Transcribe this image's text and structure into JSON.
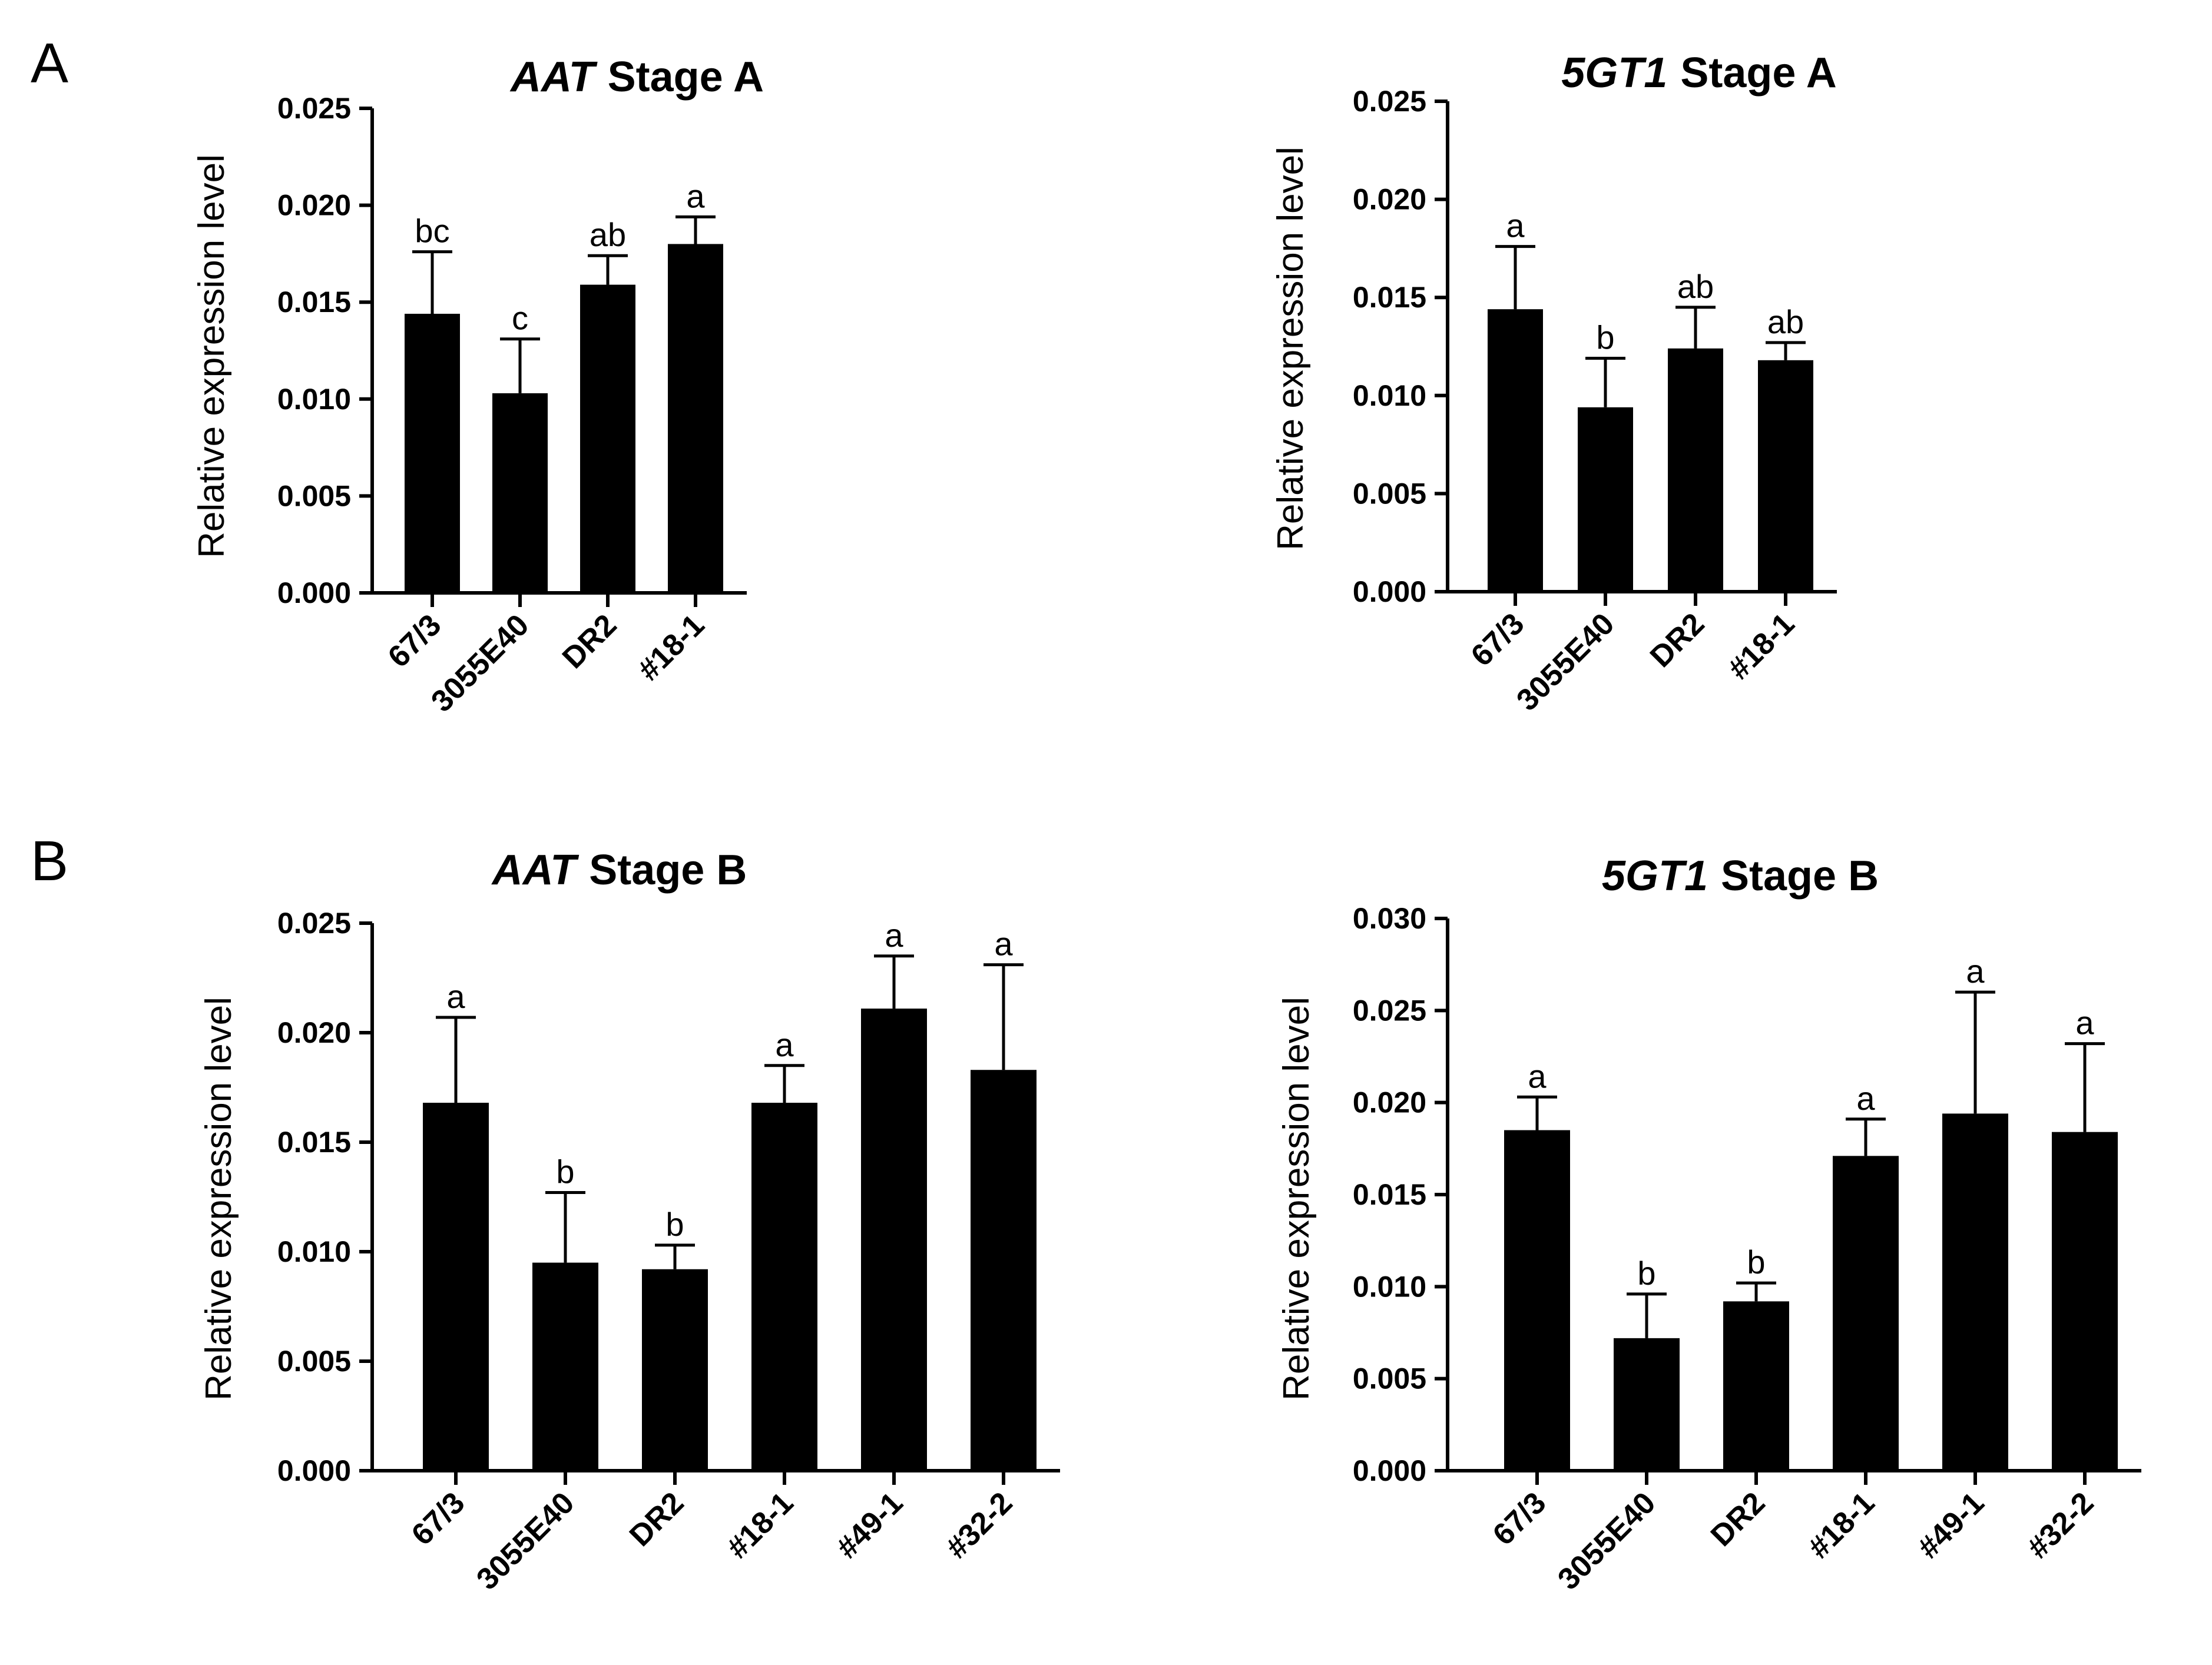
{
  "panels": [
    {
      "letter": "A"
    },
    {
      "letter": "B"
    }
  ],
  "chart_data": [
    {
      "type": "bar",
      "panel": "A",
      "title_gene": "AAT",
      "title_rest": "Stage A",
      "ylabel": "Relative expression level",
      "categories": [
        "67/3",
        "3055E40",
        "DR2",
        "#18-1"
      ],
      "values": [
        0.0144,
        0.0103,
        0.0159,
        0.018
      ],
      "errors": [
        0.0032,
        0.0028,
        0.0015,
        0.0014
      ],
      "significance": [
        "bc",
        "c",
        "ab",
        "a"
      ],
      "ylim": [
        0,
        0.025
      ],
      "yticks": [
        "0.000",
        "0.005",
        "0.010",
        "0.015",
        "0.020",
        "0.025"
      ],
      "grid": false
    },
    {
      "type": "bar",
      "panel": "A",
      "title_gene": "5GT1",
      "title_rest": "Stage A",
      "ylabel": "Relative expression level",
      "categories": [
        "67/3",
        "3055E40",
        "DR2",
        "#18-1"
      ],
      "values": [
        0.0144,
        0.0094,
        0.0124,
        0.0118
      ],
      "errors": [
        0.0032,
        0.0025,
        0.0021,
        0.0009
      ],
      "significance": [
        "a",
        "b",
        "ab",
        "ab"
      ],
      "ylim": [
        0,
        0.025
      ],
      "yticks": [
        "0.000",
        "0.005",
        "0.010",
        "0.015",
        "0.020",
        "0.025"
      ],
      "grid": false
    },
    {
      "type": "bar",
      "panel": "B",
      "title_gene": "AAT",
      "title_rest": "Stage B",
      "ylabel": "Relative expression level",
      "categories": [
        "67/3",
        "3055E40",
        "DR2",
        "#18-1",
        "#49-1",
        "#32-2"
      ],
      "values": [
        0.0168,
        0.0095,
        0.0092,
        0.0168,
        0.0211,
        0.0183
      ],
      "errors": [
        0.0039,
        0.0032,
        0.0011,
        0.0017,
        0.0024,
        0.0048
      ],
      "significance": [
        "a",
        "b",
        "b",
        "a",
        "a",
        "a"
      ],
      "ylim": [
        0,
        0.025
      ],
      "yticks": [
        "0.000",
        "0.005",
        "0.010",
        "0.015",
        "0.020",
        "0.025"
      ],
      "grid": false
    },
    {
      "type": "bar",
      "panel": "B",
      "title_gene": "5GT1",
      "title_rest": "Stage B",
      "ylabel": "Relative expression level",
      "categories": [
        "67/3",
        "3055E40",
        "DR2",
        "#18-1",
        "#49-1",
        "#32-2"
      ],
      "values": [
        0.0185,
        0.0072,
        0.0092,
        0.0171,
        0.0194,
        0.0184
      ],
      "errors": [
        0.0018,
        0.0024,
        0.001,
        0.002,
        0.0066,
        0.0048
      ],
      "significance": [
        "a",
        "b",
        "b",
        "a",
        "a",
        "a"
      ],
      "ylim": [
        0,
        0.03
      ],
      "yticks": [
        "0.000",
        "0.005",
        "0.010",
        "0.015",
        "0.020",
        "0.025",
        "0.030"
      ],
      "grid": false
    }
  ]
}
